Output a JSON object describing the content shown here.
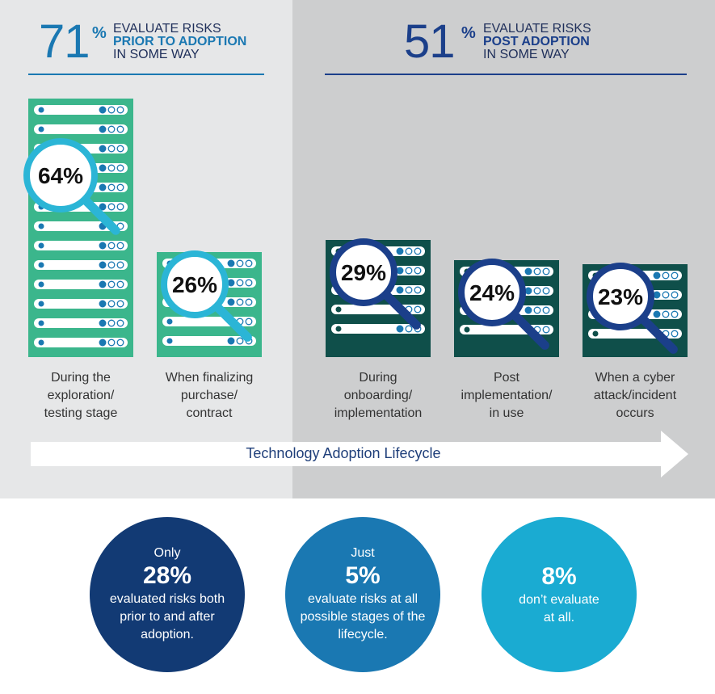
{
  "header_left": {
    "big": "71",
    "pct": "%",
    "line1": "EVALUATE RISKS",
    "line2": "PRIOR TO ADOPTION",
    "line3": "IN SOME WAY"
  },
  "header_right": {
    "big": "51",
    "pct": "%",
    "line1": "EVALUATE RISKS",
    "line2": "POST ADOPTION",
    "line3": "IN SOME WAY"
  },
  "arrow_label": "Technology Adoption Lifecycle",
  "colors": {
    "pre_server": "#3bb68c",
    "post_server": "#0f4f4a",
    "magnifier_light": "#2bb5d6",
    "magnifier_dark": "#1b3f8a",
    "dark_navy": "#123a74",
    "mid_blue": "#1a78b2",
    "light_blue": "#1aabd2"
  },
  "chart_data": {
    "type": "bar",
    "categories": [
      [
        "During the",
        "exploration/",
        "testing stage"
      ],
      [
        "When finalizing",
        "purchase/",
        "contract"
      ],
      [
        "During",
        "onboarding/",
        "implementation"
      ],
      [
        "Post",
        "implementation/",
        "in use"
      ],
      [
        "When a cyber",
        "attack/incident",
        "occurs"
      ]
    ],
    "values": [
      64,
      26,
      29,
      24,
      23
    ],
    "value_labels": [
      "64%",
      "26%",
      "29%",
      "24%",
      "23%"
    ],
    "groups": [
      "prior",
      "prior",
      "post",
      "post",
      "post"
    ]
  },
  "stats": [
    {
      "pre": "Only",
      "big": "28%",
      "lines": [
        "evaluated risks both",
        "prior to and after",
        "adoption."
      ]
    },
    {
      "pre": "Just",
      "big": "5%",
      "lines": [
        "evaluate risks at all",
        "possible stages of the",
        "lifecycle."
      ]
    },
    {
      "pre": "",
      "big": "8%",
      "lines": [
        "don’t evaluate",
        "at all."
      ]
    }
  ]
}
